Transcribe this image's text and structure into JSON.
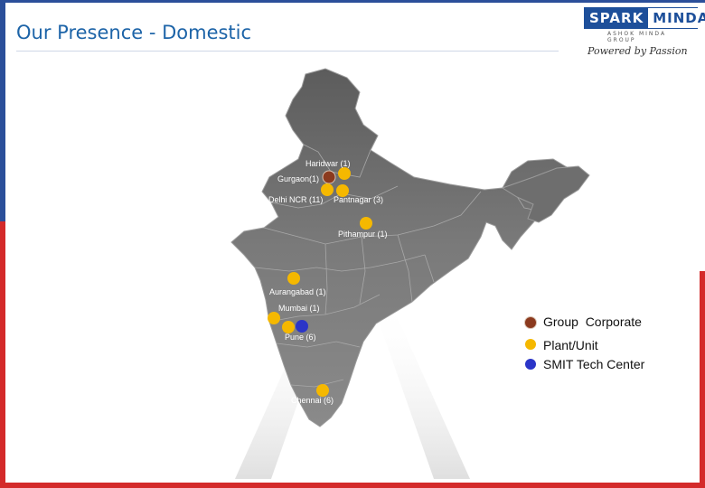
{
  "title": "Our Presence - Domestic",
  "logo": {
    "brand_left": "SPARK",
    "brand_right": "MINDA",
    "group": "ASHOK MINDA GROUP",
    "tagline": "Powered by Passion"
  },
  "locations": [
    {
      "label": "Haridwar (1)",
      "type": "plant"
    },
    {
      "label": "Gurgaon(1)",
      "type": "corporate"
    },
    {
      "label": "Delhi NCR (11)",
      "type": "plant"
    },
    {
      "label": "Pantnagar (3)",
      "type": "plant"
    },
    {
      "label": "Pithampur (1)",
      "type": "plant"
    },
    {
      "label": "Aurangabad (1)",
      "type": "plant"
    },
    {
      "label": "Mumbai (1)",
      "type": "plant"
    },
    {
      "label": "Pune (6)",
      "type": "plant"
    },
    {
      "label": "Chennai (6)",
      "type": "plant"
    }
  ],
  "legend": [
    {
      "label": "Group  Corporate",
      "color": "#8b3a1e"
    },
    {
      "label": "Plant/Unit",
      "color": "#f5b800"
    },
    {
      "label": "SMIT Tech Center",
      "color": "#2b35c8"
    }
  ],
  "colors": {
    "plant": "#f5b800",
    "corporate": "#8b3a1e",
    "tech": "#2b35c8",
    "map": "#777777"
  }
}
